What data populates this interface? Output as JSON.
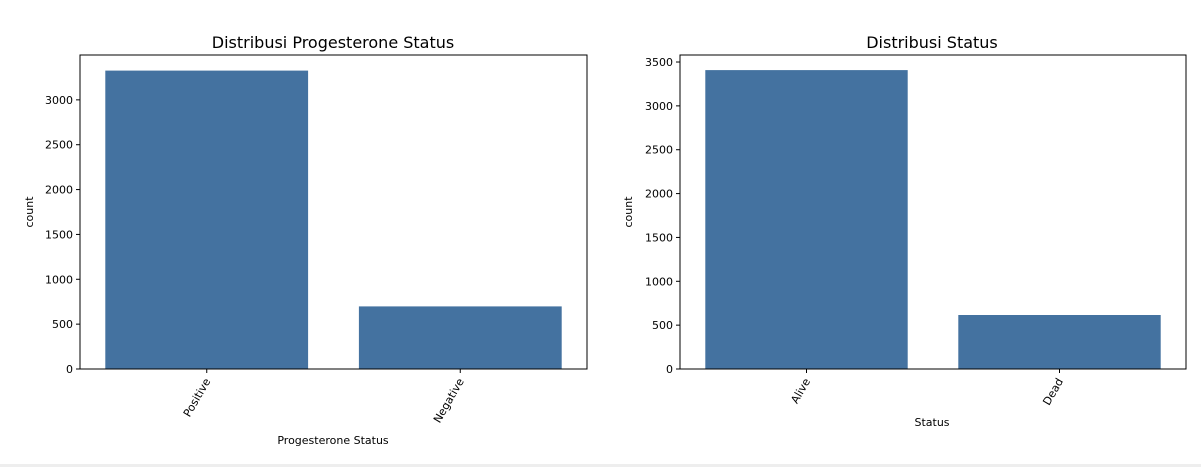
{
  "chart_data": [
    {
      "type": "bar",
      "title": "Distribusi Progesterone Status",
      "xlabel": "Progesterone Status",
      "ylabel": "count",
      "categories": [
        "Positive",
        "Negative"
      ],
      "values": [
        3326,
        698
      ],
      "yticks": [
        0,
        500,
        1000,
        1500,
        2000,
        2500,
        3000
      ],
      "ylim": [
        0,
        3500
      ],
      "color": "#4472a0",
      "grid": false,
      "legend": "none"
    },
    {
      "type": "bar",
      "title": "Distribusi Status",
      "xlabel": "Status",
      "ylabel": "count",
      "categories": [
        "Alive",
        "Dead"
      ],
      "values": [
        3408,
        616
      ],
      "yticks": [
        0,
        500,
        1000,
        1500,
        2000,
        2500,
        3000,
        3500
      ],
      "ylim": [
        0,
        3580
      ],
      "color": "#4472a0",
      "grid": false,
      "legend": "none"
    }
  ]
}
